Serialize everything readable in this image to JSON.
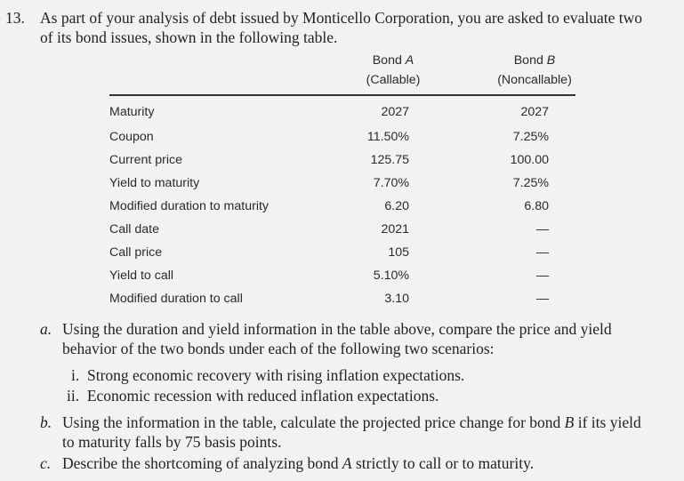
{
  "question": {
    "number": "13.",
    "intro_line1": "As part of your analysis of debt issued by Monticello Corporation, you are asked to evaluate two",
    "intro_line2": "of its bond issues, shown in the following table."
  },
  "table": {
    "col_a": {
      "name": "Bond ",
      "letter": "A",
      "sub": "(Callable)"
    },
    "col_b": {
      "name": "Bond ",
      "letter": "B",
      "sub": "(Noncallable)"
    },
    "rows": [
      {
        "label": "Maturity",
        "a": "2027",
        "b": "2027"
      },
      {
        "label": "Coupon",
        "a": "11.50%",
        "b": "7.25%"
      },
      {
        "label": "Current price",
        "a": "125.75",
        "b": "100.00"
      },
      {
        "label": "Yield to maturity",
        "a": "7.70%",
        "b": "7.25%"
      },
      {
        "label": "Modified duration to maturity",
        "a": "6.20",
        "b": "6.80"
      },
      {
        "label": "Call date",
        "a": "2021",
        "b": "—"
      },
      {
        "label": "Call price",
        "a": "105",
        "b": "—"
      },
      {
        "label": "Yield to call",
        "a": "5.10%",
        "b": "—"
      },
      {
        "label": "Modified duration to call",
        "a": "3.10",
        "b": "—"
      }
    ]
  },
  "parts": {
    "a": {
      "letter": "a.",
      "line1": "Using the duration and yield information in the table above, compare the price and yield",
      "line2": "behavior of the two bonds under each of the following two scenarios:",
      "i": "i.  Strong economic recovery with rising inflation expectations.",
      "ii": "ii.  Economic recession with reduced inflation expectations."
    },
    "b": {
      "letter": "b.",
      "line1_pre": "Using the information in the table, calculate the projected price change for bond ",
      "line1_em": "B",
      "line1_post": " if its yield",
      "line2": "to maturity falls by 75 basis points."
    },
    "c": {
      "letter": "c.",
      "pre": "Describe the shortcoming of analyzing bond ",
      "em": "A",
      "post": " strictly to call or to maturity."
    }
  }
}
